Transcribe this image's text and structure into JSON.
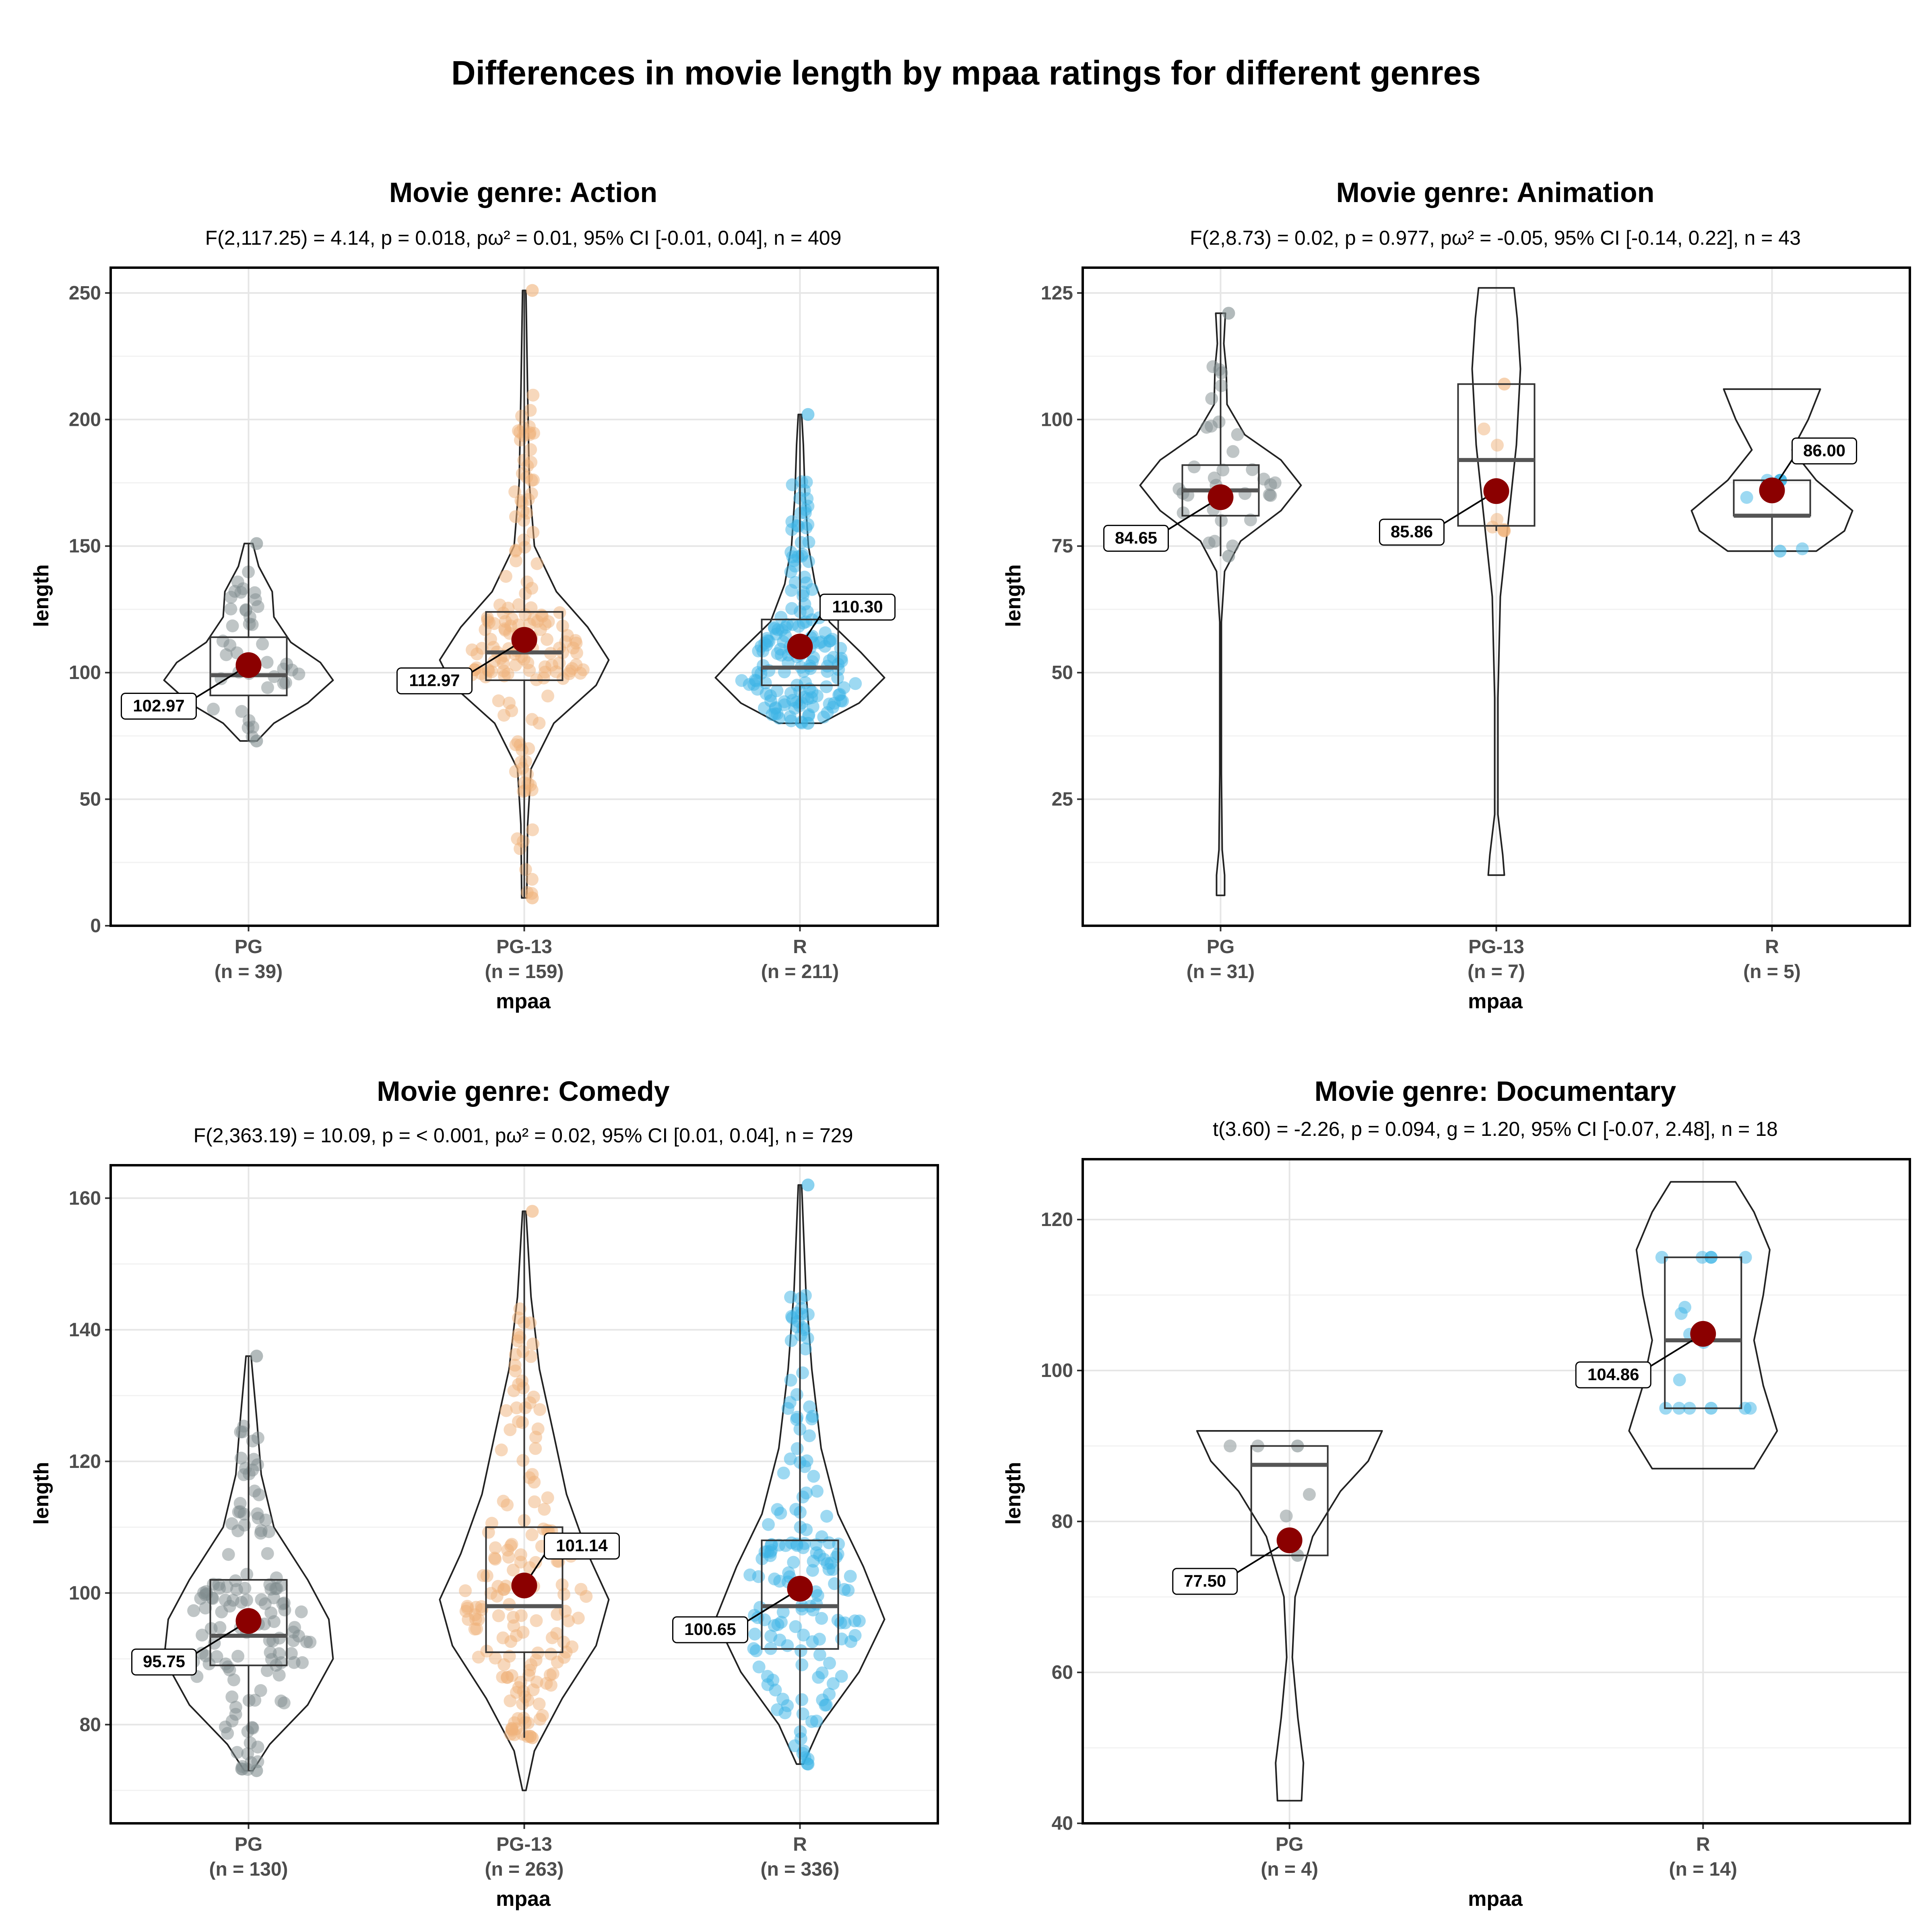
{
  "title": "Differences in movie length by mpaa ratings for different genres",
  "colors": {
    "PG": "#7f8c8d",
    "PG-13": "#f0b27a",
    "R": "#3cb4e5",
    "mean_point": "#8b0000",
    "panel_border": "#000000",
    "grid": "#e6e6e6"
  },
  "chart_data": [
    {
      "type": "violin-box-scatter",
      "title": "Movie genre: Action",
      "stats": "F(2,117.25) = 4.14, p = 0.018, pω² = 0.01, 95% CI [-0.01, 0.04], n = 409",
      "xlabel": "mpaa",
      "ylabel": "length",
      "ylim": [
        0,
        260
      ],
      "yticks": [
        0,
        50,
        100,
        150,
        200,
        250
      ],
      "groups": [
        {
          "name": "PG",
          "n_label": "(n = 39)",
          "color_key": "PG",
          "mean": 102.97,
          "mean_label": "102.97",
          "label_side": "left",
          "box": {
            "q1": 91,
            "median": 99,
            "q3": 114,
            "lower": 73,
            "upper": 151
          },
          "violin": [
            [
              73,
              0.1
            ],
            [
              80,
              0.3
            ],
            [
              88,
              0.7
            ],
            [
              97,
              1.0
            ],
            [
              104,
              0.85
            ],
            [
              112,
              0.5
            ],
            [
              122,
              0.3
            ],
            [
              132,
              0.28
            ],
            [
              142,
              0.12
            ],
            [
              151,
              0.05
            ]
          ]
        },
        {
          "name": "PG-13",
          "n_label": "(n = 159)",
          "color_key": "PG-13",
          "mean": 112.97,
          "mean_label": "112.97",
          "label_side": "left",
          "box": {
            "q1": 97,
            "median": 108,
            "q3": 124,
            "lower": 11,
            "upper": 251
          },
          "violin": [
            [
              11,
              0.03
            ],
            [
              40,
              0.04
            ],
            [
              62,
              0.08
            ],
            [
              80,
              0.35
            ],
            [
              95,
              0.85
            ],
            [
              105,
              1.0
            ],
            [
              118,
              0.75
            ],
            [
              132,
              0.38
            ],
            [
              150,
              0.12
            ],
            [
              175,
              0.06
            ],
            [
              210,
              0.04
            ],
            [
              251,
              0.02
            ]
          ]
        },
        {
          "name": "R",
          "n_label": "(n = 211)",
          "color_key": "R",
          "mean": 110.3,
          "mean_label": "110.30",
          "label_side": "right",
          "box": {
            "q1": 95,
            "median": 102,
            "q3": 121,
            "lower": 80,
            "upper": 202
          },
          "violin": [
            [
              80,
              0.25
            ],
            [
              88,
              0.7
            ],
            [
              98,
              1.0
            ],
            [
              108,
              0.72
            ],
            [
              120,
              0.35
            ],
            [
              135,
              0.18
            ],
            [
              150,
              0.1
            ],
            [
              170,
              0.06
            ],
            [
              190,
              0.04
            ],
            [
              202,
              0.02
            ]
          ]
        }
      ]
    },
    {
      "type": "violin-box-scatter",
      "title": "Movie genre: Animation",
      "stats": "F(2,8.73) = 0.02, p = 0.977, pω² = -0.05, 95% CI [-0.14, 0.22], n = 43",
      "xlabel": "mpaa",
      "ylabel": "length",
      "ylim": [
        0,
        130
      ],
      "yticks": [
        25,
        50,
        75,
        100,
        125
      ],
      "groups": [
        {
          "name": "PG",
          "n_label": "(n = 31)",
          "color_key": "PG",
          "mean": 84.65,
          "mean_label": "84.65",
          "label_side": "left",
          "box": {
            "q1": 81,
            "median": 86,
            "q3": 91,
            "lower": 73,
            "upper": 121
          },
          "violin": [
            [
              6,
              0.05
            ],
            [
              10,
              0.05
            ],
            [
              15,
              0.02
            ],
            [
              30,
              0.01
            ],
            [
              60,
              0.01
            ],
            [
              70,
              0.05
            ],
            [
              76,
              0.25
            ],
            [
              82,
              0.75
            ],
            [
              87,
              1.0
            ],
            [
              92,
              0.75
            ],
            [
              97,
              0.3
            ],
            [
              103,
              0.08
            ],
            [
              110,
              0.07
            ],
            [
              115,
              0.04
            ],
            [
              121,
              0.06
            ]
          ]
        },
        {
          "name": "PG-13",
          "n_label": "(n = 7)",
          "color_key": "PG-13",
          "mean": 85.86,
          "mean_label": "85.86",
          "label_side": "left",
          "box": {
            "q1": 79,
            "median": 92,
            "q3": 107,
            "lower": 78,
            "upper": 107
          },
          "violin": [
            [
              10,
              0.1
            ],
            [
              14,
              0.08
            ],
            [
              22,
              0.02
            ],
            [
              45,
              0.02
            ],
            [
              65,
              0.05
            ],
            [
              80,
              0.15
            ],
            [
              95,
              0.25
            ],
            [
              110,
              0.3
            ],
            [
              120,
              0.26
            ],
            [
              126,
              0.22
            ]
          ]
        },
        {
          "name": "R",
          "n_label": "(n = 5)",
          "color_key": "R",
          "mean": 86.0,
          "mean_label": "86.00",
          "label_side": "right",
          "box": {
            "q1": 81,
            "median": 81,
            "q3": 88,
            "lower": 74,
            "upper": 88
          },
          "violin": [
            [
              74,
              0.55
            ],
            [
              78,
              0.9
            ],
            [
              82,
              1.0
            ],
            [
              88,
              0.55
            ],
            [
              94,
              0.25
            ],
            [
              100,
              0.45
            ],
            [
              106,
              0.6
            ]
          ]
        }
      ]
    },
    {
      "type": "violin-box-scatter",
      "title": "Movie genre: Comedy",
      "stats": "F(2,363.19) = 10.09, p = < 0.001, pω² = 0.02, 95% CI [0.01, 0.04], n = 729",
      "xlabel": "mpaa",
      "ylabel": "length",
      "ylim": [
        65,
        165
      ],
      "yticks": [
        80,
        100,
        120,
        140,
        160
      ],
      "groups": [
        {
          "name": "PG",
          "n_label": "(n = 130)",
          "color_key": "PG",
          "mean": 95.75,
          "mean_label": "95.75",
          "label_side": "left",
          "box": {
            "q1": 89,
            "median": 93.5,
            "q3": 102,
            "lower": 73,
            "upper": 136
          },
          "violin": [
            [
              73,
              0.05
            ],
            [
              77,
              0.25
            ],
            [
              83,
              0.7
            ],
            [
              90,
              1.0
            ],
            [
              96,
              0.95
            ],
            [
              102,
              0.7
            ],
            [
              110,
              0.3
            ],
            [
              118,
              0.15
            ],
            [
              126,
              0.1
            ],
            [
              136,
              0.03
            ]
          ]
        },
        {
          "name": "PG-13",
          "n_label": "(n = 263)",
          "color_key": "PG-13",
          "mean": 101.14,
          "mean_label": "101.14",
          "label_side": "right",
          "box": {
            "q1": 91,
            "median": 98,
            "q3": 110,
            "lower": 78,
            "upper": 158
          },
          "violin": [
            [
              70,
              0.02
            ],
            [
              76,
              0.12
            ],
            [
              84,
              0.45
            ],
            [
              92,
              0.85
            ],
            [
              99,
              1.0
            ],
            [
              106,
              0.75
            ],
            [
              115,
              0.5
            ],
            [
              124,
              0.35
            ],
            [
              134,
              0.18
            ],
            [
              145,
              0.08
            ],
            [
              158,
              0.02
            ]
          ]
        },
        {
          "name": "R",
          "n_label": "(n = 336)",
          "color_key": "R",
          "mean": 100.65,
          "mean_label": "100.65",
          "label_side": "left",
          "box": {
            "q1": 91.5,
            "median": 98,
            "q3": 108,
            "lower": 74,
            "upper": 162
          },
          "violin": [
            [
              74,
              0.04
            ],
            [
              80,
              0.25
            ],
            [
              88,
              0.7
            ],
            [
              96,
              1.0
            ],
            [
              104,
              0.75
            ],
            [
              112,
              0.45
            ],
            [
              122,
              0.25
            ],
            [
              134,
              0.14
            ],
            [
              146,
              0.07
            ],
            [
              162,
              0.02
            ]
          ]
        }
      ]
    },
    {
      "type": "violin-box-scatter",
      "title": "Movie genre: Documentary",
      "stats": "t(3.60) = -2.26, p = 0.094, g = 1.20, 95% CI [-0.07, 2.48], n = 18",
      "xlabel": "mpaa",
      "ylabel": "length",
      "ylim": [
        40,
        128
      ],
      "yticks": [
        40,
        60,
        80,
        100,
        120
      ],
      "groups": [
        {
          "name": "PG",
          "n_label": "(n = 4)",
          "color_key": "PG",
          "mean": 77.5,
          "mean_label": "77.50",
          "label_side": "left",
          "box": {
            "q1": 75.5,
            "median": 87.5,
            "q3": 90,
            "lower": 75.5,
            "upper": 90
          },
          "violin": [
            [
              43,
              0.13
            ],
            [
              48,
              0.15
            ],
            [
              54,
              0.09
            ],
            [
              62,
              0.03
            ],
            [
              70,
              0.06
            ],
            [
              78,
              0.25
            ],
            [
              84,
              0.55
            ],
            [
              88,
              0.85
            ],
            [
              92,
              1.0
            ]
          ]
        },
        {
          "name": "R",
          "n_label": "(n = 14)",
          "color_key": "R",
          "mean": 104.86,
          "mean_label": "104.86",
          "label_side": "left",
          "box": {
            "q1": 95,
            "median": 104,
            "q3": 115,
            "lower": 95,
            "upper": 115
          },
          "violin": [
            [
              87,
              0.55
            ],
            [
              92,
              0.8
            ],
            [
              98,
              0.65
            ],
            [
              104,
              0.55
            ],
            [
              110,
              0.65
            ],
            [
              116,
              0.72
            ],
            [
              121,
              0.55
            ],
            [
              125,
              0.35
            ]
          ]
        }
      ]
    }
  ]
}
